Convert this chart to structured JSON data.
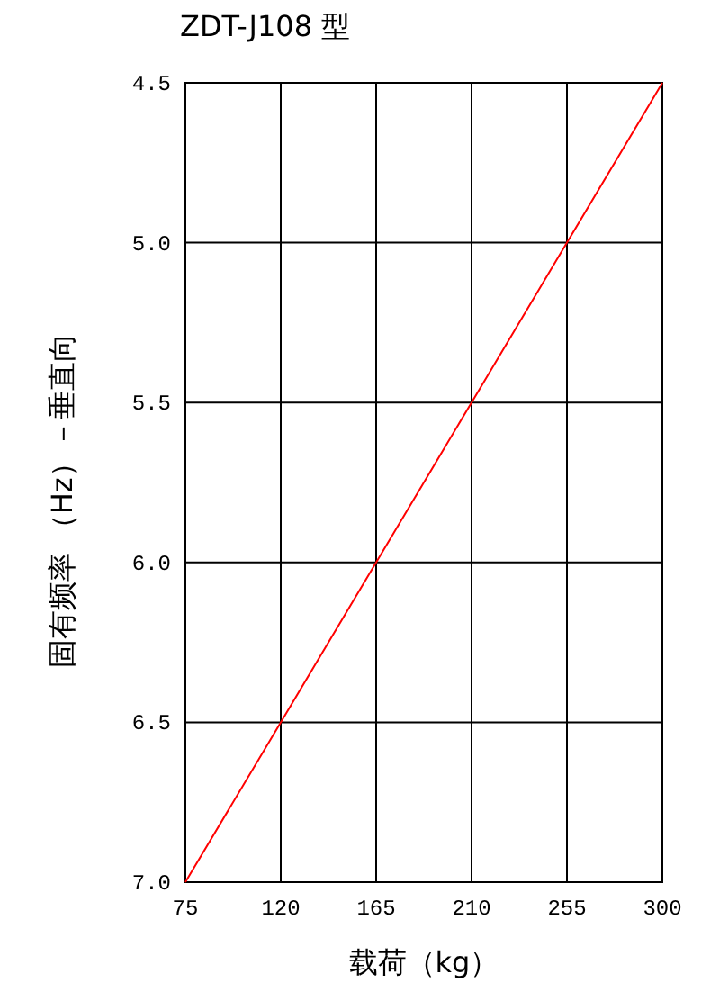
{
  "chart_data": {
    "type": "line",
    "title": "ZDT-J108 型",
    "xlabel": "载荷（kg）",
    "ylabel": "固有频率 （Hz）－垂直向",
    "x": [
      75,
      120,
      165,
      210,
      255,
      300
    ],
    "series": [
      {
        "color": "#ff0000",
        "values": [
          7.0,
          6.5,
          6.0,
          5.5,
          5.0,
          4.5
        ]
      }
    ],
    "xlim": [
      75,
      300
    ],
    "xticks": [
      75,
      120,
      165,
      210,
      255,
      300
    ],
    "ylim": [
      7.0,
      4.5
    ],
    "yticks": [
      {
        "value": 7.0,
        "label": "7.0"
      },
      {
        "value": 6.5,
        "label": "6.5"
      },
      {
        "value": 6.0,
        "label": "6.0"
      },
      {
        "value": 5.5,
        "label": "5.5"
      },
      {
        "value": 5.0,
        "label": "5.0"
      },
      {
        "value": 4.5,
        "label": "4.5"
      }
    ],
    "grid": true,
    "marker": "none",
    "line_style": "solid"
  }
}
